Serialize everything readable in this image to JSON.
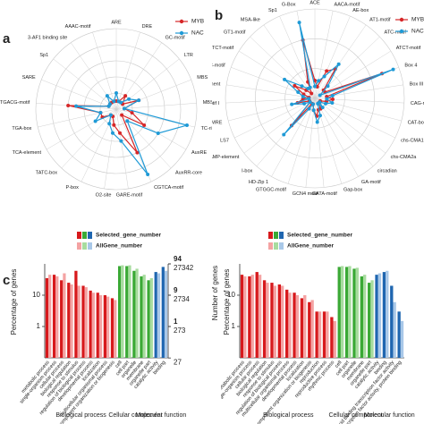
{
  "chart_data": [
    {
      "type": "radar",
      "panel": "a",
      "categories": [
        "ARE",
        "DRE",
        "GC-motif",
        "LTR",
        "MBS",
        "MBSI",
        "TC-rich repeats",
        "AuxRE",
        "AuxRR-core",
        "CGTCA-motif",
        "GARE-motif",
        "O2-site",
        "P-box",
        "TATC-box",
        "TCA-element",
        "TGA-box",
        "TGACG-motif",
        "SARE",
        "Sp1",
        "3-AF1 binding site",
        "AAAC-motif"
      ],
      "rlim": [
        0,
        10
      ],
      "rticks": [
        2,
        4,
        6,
        8,
        10
      ],
      "series": [
        {
          "name": "MYB",
          "color": "#d62728",
          "values": [
            1,
            1,
            2,
            1,
            3,
            1,
            2,
            4,
            1,
            6,
            3,
            2,
            1,
            1,
            2,
            2,
            6,
            1,
            1,
            1,
            1
          ]
        },
        {
          "name": "NAC",
          "color": "#1f9ad6",
          "values": [
            2,
            1,
            1,
            2,
            3,
            1,
            9,
            6,
            2,
            9,
            4,
            3,
            2,
            1,
            3,
            2,
            5,
            1,
            1,
            2,
            1
          ]
        }
      ]
    },
    {
      "type": "radar",
      "panel": "b",
      "categories": [
        "ACE",
        "AACA-motif",
        "AE-box",
        "AT1-motif",
        "ATC-motif",
        "ATCT-motif",
        "Box 4",
        "Box III",
        "CAG-motif",
        "CAT-box",
        "chs-CMA1a",
        "chs-CMA2a",
        "circadian",
        "GA-motif",
        "Gap-box",
        "GATA-motif",
        "GCN4 motif",
        "GTGGC-motif",
        "HD-Zip 1",
        "I-box",
        "LAMP-element",
        "LS7",
        "MRE",
        "motif I",
        "RY-element",
        "TCCC-motif",
        "TCT-motif",
        "GT1-motif",
        "MSA-like",
        "Sp1",
        "G-Box"
      ],
      "rlim": [
        0,
        15
      ],
      "rticks": [
        5,
        10,
        15
      ],
      "series": [
        {
          "name": "MYB",
          "color": "#d62728",
          "values": [
            3,
            2,
            5,
            6,
            2,
            2,
            12,
            2,
            3,
            2,
            1,
            1,
            1,
            2,
            2,
            3,
            2,
            1,
            1,
            6,
            1,
            1,
            3,
            2,
            1,
            2,
            4,
            2,
            1,
            3,
            10
          ]
        },
        {
          "name": "NAC",
          "color": "#1f9ad6",
          "values": [
            2,
            3,
            4,
            7,
            3,
            1,
            14,
            3,
            2,
            3,
            2,
            1,
            2,
            1,
            3,
            4,
            2,
            1,
            2,
            8,
            1,
            2,
            4,
            1,
            2,
            3,
            6,
            3,
            2,
            2,
            13
          ]
        }
      ]
    },
    {
      "type": "bar",
      "panel": "c",
      "log": true,
      "ylabel": "Percentage of genes",
      "y2label": "Number of genes",
      "ylim": [
        0.1,
        100
      ],
      "yticks": [
        1,
        10
      ],
      "y2lim": [
        0.094,
        94
      ],
      "y2ticks": [
        94,
        {
          "value": 9.4,
          "label": "9"
        },
        {
          "value": 0.94,
          "label": "1"
        }
      ],
      "y3lim": [
        27.342,
        27342
      ],
      "y3ticks": [
        27342,
        2734,
        273,
        27
      ],
      "groups": [
        {
          "name": "Biological process",
          "colors": [
            "#d7191c",
            "#f4a3a3"
          ],
          "text_color": "#222",
          "categories": [
            "metabolic process",
            "single-organism process",
            "cellular process",
            "biological regulation",
            "response to stimulus",
            "regulation of biological process",
            "developmental process",
            "localization",
            "multicellular organismal process",
            "cellular component organization or biogenesis"
          ]
        },
        {
          "name": "Cellular component",
          "colors": [
            "#3aa935",
            "#a8dc9f"
          ],
          "text_color": "#bbb",
          "categories": [
            "cell",
            "cell part",
            "organelle",
            "membrane",
            "organelle part"
          ]
        },
        {
          "name": "Molecular function",
          "colors": [
            "#1f66b0",
            "#a9c8e8"
          ],
          "text_color": "#222",
          "categories": [
            "catalytic activity",
            "binding"
          ]
        }
      ],
      "series": [
        {
          "name": "Selected_gene_number",
          "color": "#1f5fa8",
          "values": [
            35,
            45,
            30,
            25,
            60,
            20,
            14,
            12,
            10,
            8,
            85,
            85,
            60,
            40,
            30,
            55,
            80
          ]
        },
        {
          "name": "AllGene_number",
          "color": "#222",
          "values": [
            45,
            40,
            50,
            22,
            20,
            18,
            12,
            10,
            9,
            7,
            90,
            90,
            70,
            45,
            35,
            50,
            60
          ]
        }
      ]
    },
    {
      "type": "bar",
      "panel": "d",
      "log": true,
      "ylabel": "Percentage of genes",
      "ylim": [
        0.1,
        100
      ],
      "yticks": [
        1,
        10
      ],
      "groups": [
        {
          "name": "Biological process",
          "colors": [
            "#d7191c",
            "#f4a3a3"
          ],
          "text_color": "#222",
          "categories": [
            "metabolic process",
            "single-organism process",
            "cellular process",
            "biological regulation",
            "response to stimulus",
            "regulation of biological process",
            "multicellular organismal process",
            "developmental process",
            "localization",
            "cellular component organization or biogenesis",
            "reproduction",
            "reproductive process",
            "rhythmic process"
          ]
        },
        {
          "name": "Cellular component",
          "colors": [
            "#3aa935",
            "#a8dc9f"
          ],
          "text_color": "#bbb",
          "categories": [
            "cell",
            "cell part",
            "organelle",
            "membrane",
            "organelle part"
          ]
        },
        {
          "name": "Molecular function",
          "colors": [
            "#1f66b0",
            "#a9c8e8"
          ],
          "text_color": "#222",
          "categories": [
            "catalytic activity",
            "binding",
            "nucleic acid binding transcription factor activity",
            "transcription factor activity, protein binding"
          ]
        }
      ],
      "series": [
        {
          "name": "Selected_gene_number",
          "color": "#1f5fa8",
          "values": [
            45,
            40,
            55,
            30,
            25,
            22,
            15,
            12,
            8,
            6,
            3,
            3,
            2,
            80,
            80,
            70,
            40,
            25,
            45,
            55,
            20,
            3
          ]
        },
        {
          "name": "AllGene_number",
          "color": "#222",
          "values": [
            40,
            45,
            45,
            25,
            20,
            20,
            12,
            10,
            10,
            7,
            3,
            3,
            1.5,
            85,
            85,
            75,
            45,
            30,
            50,
            60,
            6,
            1.5
          ]
        }
      ]
    }
  ]
}
